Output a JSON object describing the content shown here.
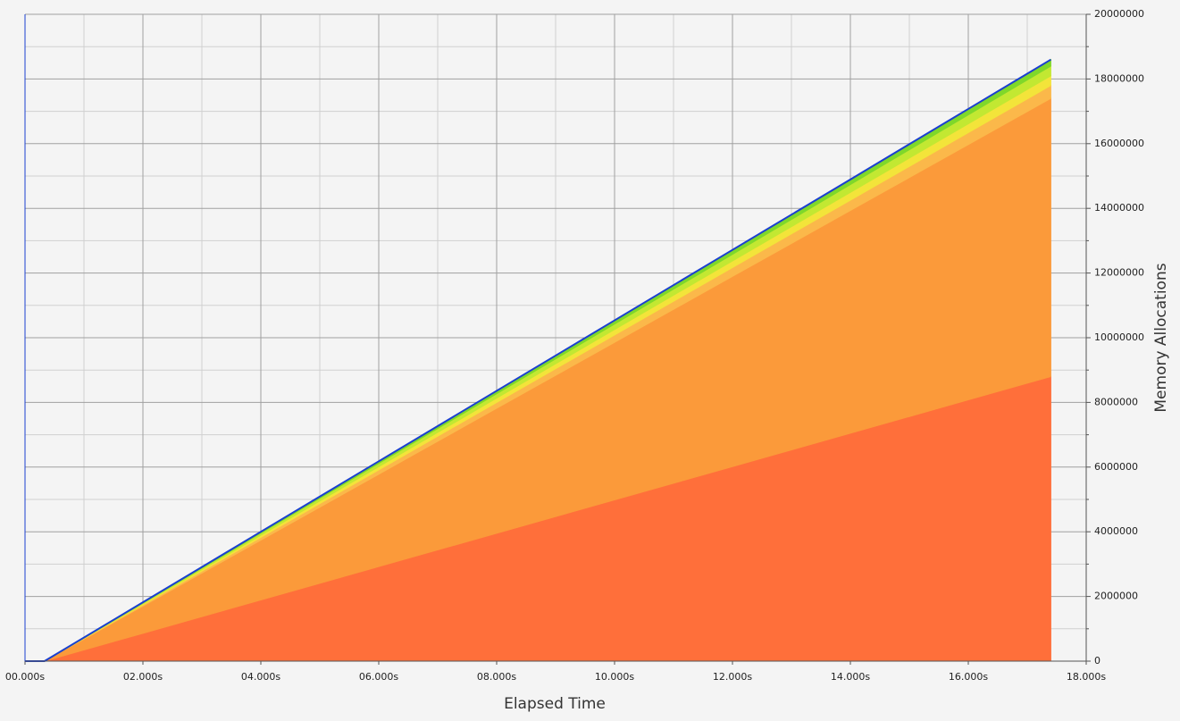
{
  "chart_data": {
    "type": "stacked_area",
    "x_label": "Elapsed Time",
    "y_label": "Memory Allocations",
    "x": [
      0,
      0.33,
      2,
      4,
      6,
      8,
      10,
      12,
      14,
      16,
      17.4
    ],
    "series": [
      {
        "color": "#ff6f3a",
        "values": [
          0,
          0,
          861000,
          1892000,
          2923000,
          3954000,
          4985000,
          6016000,
          7047000,
          8078000,
          8800000
        ]
      },
      {
        "color": "#fb9a3a",
        "values": [
          0,
          0,
          841000,
          1849000,
          2857000,
          3864000,
          4872000,
          5880000,
          6887000,
          7895000,
          8600000
        ]
      },
      {
        "color": "#fbb84a",
        "values": [
          0,
          0,
          39000,
          86000,
          133000,
          180000,
          227000,
          273000,
          320000,
          367000,
          400000
        ]
      },
      {
        "color": "#f3e43a",
        "values": [
          0,
          0,
          29000,
          65000,
          100000,
          135000,
          170000,
          205000,
          240000,
          275000,
          300000
        ]
      },
      {
        "color": "#c2e832",
        "values": [
          0,
          0,
          29000,
          65000,
          100000,
          135000,
          170000,
          205000,
          240000,
          275000,
          300000
        ]
      },
      {
        "color": "#7fd82a",
        "values": [
          0,
          0,
          20000,
          43000,
          66000,
          90000,
          113000,
          137000,
          160000,
          184000,
          200000
        ]
      }
    ],
    "outline_color": "#1a3fd0",
    "xlim": [
      0,
      18
    ],
    "xticks": [
      {
        "value": 0,
        "label": "00.000s"
      },
      {
        "value": 2,
        "label": "02.000s"
      },
      {
        "value": 4,
        "label": "04.000s"
      },
      {
        "value": 6,
        "label": "06.000s"
      },
      {
        "value": 8,
        "label": "08.000s"
      },
      {
        "value": 10,
        "label": "10.000s"
      },
      {
        "value": 12,
        "label": "12.000s"
      },
      {
        "value": 14,
        "label": "14.000s"
      },
      {
        "value": 16,
        "label": "16.000s"
      },
      {
        "value": 18,
        "label": "18.000s"
      }
    ],
    "xminorticks": [
      1,
      3,
      5,
      7,
      9,
      11,
      13,
      15,
      17
    ],
    "ylim": [
      0,
      20000000
    ],
    "yticks": [
      0,
      2000000,
      4000000,
      6000000,
      8000000,
      10000000,
      12000000,
      14000000,
      16000000,
      18000000,
      20000000
    ],
    "yminorticks": [
      1000000,
      3000000,
      5000000,
      7000000,
      9000000,
      11000000,
      13000000,
      15000000,
      17000000,
      19000000
    ],
    "grid": true
  }
}
